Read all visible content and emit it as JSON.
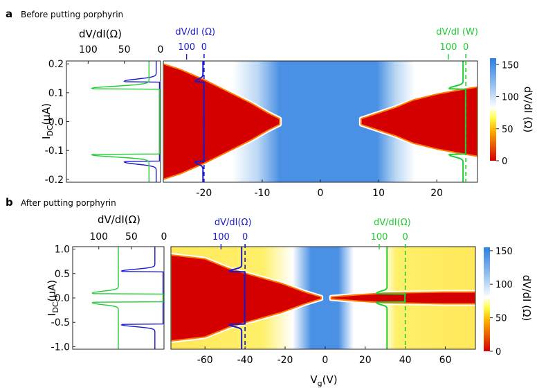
{
  "chart_data": [
    {
      "panel": "a",
      "title": "Before putting porphyrin",
      "type": "heatmap",
      "xlabel": "",
      "ylabel": "I_DC(μA)",
      "xlim": [
        -27,
        27
      ],
      "ylim": [
        -0.21,
        0.21
      ],
      "xticks": [
        -20,
        -10,
        0,
        10,
        20
      ],
      "yticks": [
        -0.2,
        -0.1,
        0.0,
        0.1,
        0.2
      ],
      "ytick_labels": [
        "-0.2",
        "-0.1",
        "0.0",
        "0.1",
        "0.2"
      ],
      "colorbar": {
        "label": "dV/dI (Ω)",
        "ticks": [
          0,
          50,
          100,
          150
        ],
        "range": [
          0,
          160
        ]
      },
      "superconducting_region": {
        "description": "low-resistance red region; critical current vs gate voltage",
        "left_lobe": {
          "vg": [
            -27,
            -24,
            -20,
            -16,
            -12,
            -9,
            -7
          ],
          "ic": [
            0.2,
            0.18,
            0.145,
            0.105,
            0.065,
            0.03,
            0.01
          ]
        },
        "right_lobe": {
          "vg": [
            7,
            10,
            13,
            16,
            20,
            24,
            27
          ],
          "ic": [
            0.01,
            0.03,
            0.05,
            0.075,
            0.095,
            0.11,
            0.12
          ]
        },
        "blue_gap": [
          -7,
          11
        ]
      },
      "side_plot": {
        "xlabel": "dV/dI(Ω)",
        "xticks": [
          100,
          50,
          0
        ],
        "xlim": [
          130,
          0
        ],
        "series": [
          {
            "color": "#1a1acc",
            "vg": -20,
            "ic": 0.14,
            "peak": 50,
            "base": 6
          },
          {
            "color": "#22cc33",
            "vg": 25,
            "ic": 0.115,
            "peak": 95,
            "base": 16
          }
        ]
      },
      "overlay_axes": [
        {
          "label": "dV/dI (Ω)",
          "color": "#1a1acc",
          "ticks": [
            "100",
            "0"
          ],
          "zero_vg": -20,
          "hundred_vg": -23
        },
        {
          "label": "dV/dI (W)",
          "color": "#22cc33",
          "ticks": [
            "100",
            "0"
          ],
          "zero_vg": 25,
          "hundred_vg": 22
        }
      ]
    },
    {
      "panel": "b",
      "title": "After putting porphyrin",
      "type": "heatmap",
      "xlabel": "V_g(V)",
      "ylabel": "I_DC(μA)",
      "xlim": [
        -77,
        75
      ],
      "ylim": [
        -1.05,
        1.05
      ],
      "xticks": [
        -60,
        -40,
        -20,
        0,
        20,
        40,
        60
      ],
      "yticks": [
        -1.0,
        -0.5,
        0.0,
        0.5,
        1.0
      ],
      "ytick_labels": [
        "-1.0",
        "-0.5",
        "0.0",
        "0.5",
        "1.0"
      ],
      "colorbar": {
        "label": "dV/dI (Ω)",
        "ticks": [
          0,
          50,
          100,
          150
        ],
        "range": [
          0,
          155
        ]
      },
      "superconducting_region": {
        "description": "red lobe on hole side, narrow red stripe on electron side",
        "left_lobe": {
          "vg": [
            -77,
            -60,
            -48,
            -35,
            -22,
            -10,
            -2
          ],
          "ic": [
            0.88,
            0.8,
            0.6,
            0.45,
            0.3,
            0.12,
            0.02
          ]
        },
        "right_lobe": {
          "vg": [
            3,
            15,
            30,
            45,
            60,
            75
          ],
          "ic": [
            0.02,
            0.06,
            0.1,
            0.11,
            0.12,
            0.12
          ]
        },
        "blue_gap": [
          -8,
          7
        ]
      },
      "side_plot": {
        "xlabel": "dV/dI(Ω)",
        "xticks": [
          100,
          50,
          0
        ],
        "xlim": [
          140,
          0
        ],
        "series": [
          {
            "color": "#1a1acc",
            "vg": -40,
            "ic": 0.55,
            "peak": 65,
            "base": 14
          },
          {
            "color": "#22cc33",
            "vg": 38,
            "ic": 0.1,
            "peak": 110,
            "base": 70
          }
        ]
      },
      "overlay_axes": [
        {
          "label": "dV/dI(Ω)",
          "color": "#1a1acc",
          "ticks": [
            "100",
            "0"
          ],
          "zero_vg": -40,
          "hundred_vg": -52
        },
        {
          "label": "dV/dI(Ω)",
          "color": "#22cc33",
          "ticks": [
            "100",
            "0"
          ],
          "zero_vg": 40,
          "hundred_vg": 27
        }
      ]
    }
  ]
}
